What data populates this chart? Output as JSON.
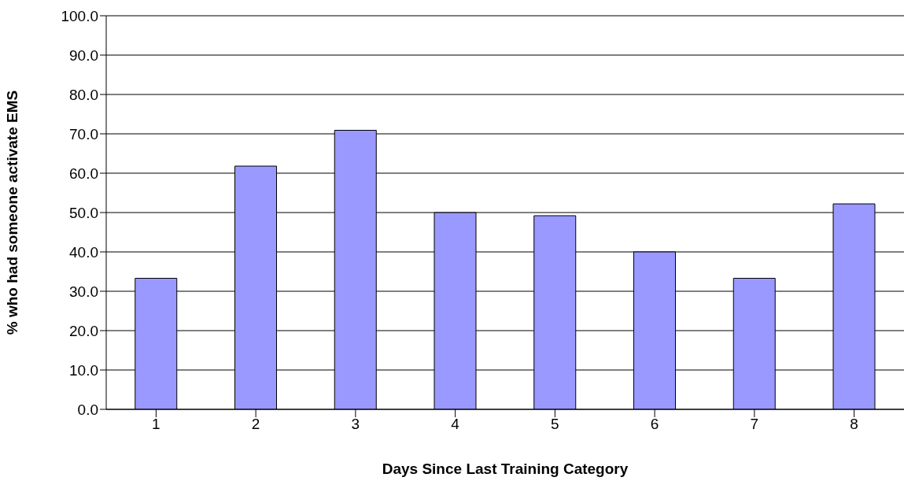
{
  "chart_data": {
    "type": "bar",
    "xlabel": "Days Since Last Training Category",
    "ylabel": "% who had someone activate EMS",
    "categories": [
      "1",
      "2",
      "3",
      "4",
      "5",
      "6",
      "7",
      "8"
    ],
    "values": [
      33.3,
      61.8,
      70.9,
      50.0,
      49.2,
      40.0,
      33.3,
      52.2
    ],
    "color": "#9999ff",
    "ylim": [
      0,
      100
    ],
    "yticks": [
      {
        "value": 0,
        "label": "0.0"
      },
      {
        "value": 10,
        "label": "10.0"
      },
      {
        "value": 20,
        "label": "20.0"
      },
      {
        "value": 30,
        "label": "30.0"
      },
      {
        "value": 40,
        "label": "40.0"
      },
      {
        "value": 50,
        "label": "50.0"
      },
      {
        "value": 60,
        "label": "60.0"
      },
      {
        "value": 70,
        "label": "70.0"
      },
      {
        "value": 80,
        "label": "80.0"
      },
      {
        "value": 90,
        "label": "90.0"
      },
      {
        "value": 100,
        "label": "100.0"
      }
    ],
    "grid": "y"
  }
}
